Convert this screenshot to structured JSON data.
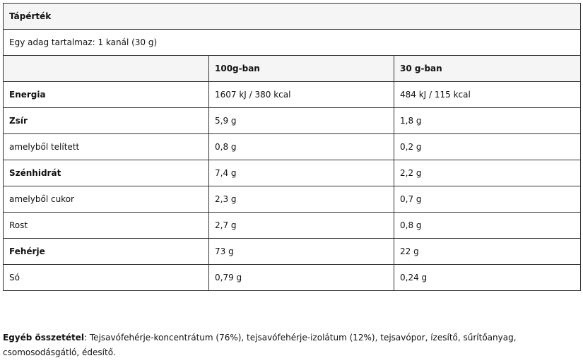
{
  "title": "Tápérték",
  "serving": "Egy adag tartalmaz: 1 kanál (30 g)",
  "table": {
    "columns": [
      "100g-ban",
      "30 g-ban"
    ],
    "rows": [
      [
        "Energia",
        "1607 kJ / 380 kcal",
        "484 kJ / 115 kcal"
      ],
      [
        "Zsír",
        "5,9 g",
        "1,8 g"
      ],
      [
        "amelyből telített",
        "0,8 g",
        "0,2 g"
      ],
      [
        "Szénhidrát",
        "7,4 g",
        "2,2 g"
      ],
      [
        "amelyből cukor",
        "2,3 g",
        "0,7 g"
      ],
      [
        "Rost",
        "2,7 g",
        "0,8 g"
      ],
      [
        "Fehérje",
        "73 g",
        "22 g"
      ],
      [
        "Só",
        "0,79 g",
        "0,24 g"
      ]
    ]
  },
  "ingredients": {
    "label": "Egyéb összetétel",
    "text": ": Tejsavófehérje-koncentrátum (76%), tejsavófehérje-izolátum (12%), tejsavópor, ízesítő, sűrítőanyag, csomosodásgátló, édesítő."
  }
}
